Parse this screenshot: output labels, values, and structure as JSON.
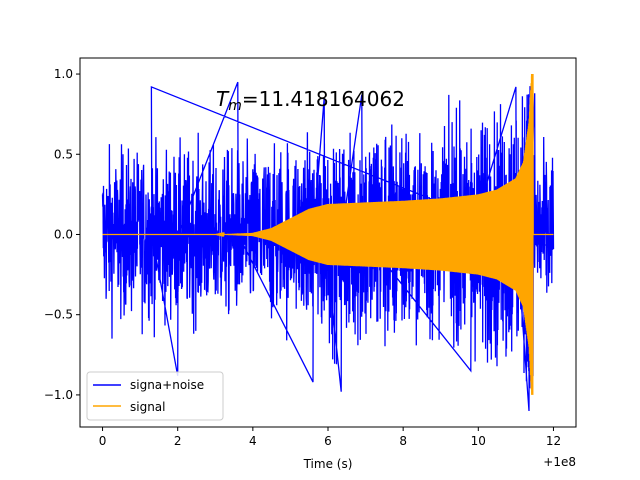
{
  "chart_data": {
    "type": "line",
    "title_prefix": "T",
    "title_subscript": "m",
    "title_value": "=11.418164062",
    "xlabel": "Time (s)",
    "ylabel": "",
    "x_offset_label": "+1e8",
    "xlim": [
      -0.6,
      12.6
    ],
    "ylim": [
      -1.2,
      1.1
    ],
    "x_ticks": [
      0,
      2,
      4,
      6,
      8,
      10,
      12
    ],
    "x_tick_labels": [
      "0",
      "2",
      "4",
      "6",
      "8",
      "10",
      "12"
    ],
    "y_ticks": [
      -1.0,
      -0.5,
      0.0,
      0.5,
      1.0
    ],
    "y_tick_labels": [
      "−1.0",
      "−0.5",
      "0.0",
      "0.5",
      "1.0"
    ],
    "grid": false,
    "legend_position": "lower-left",
    "series": [
      {
        "name": "signa+noise",
        "color": "#0000ff",
        "x_range": [
          0,
          12
        ],
        "noise_std": 0.25,
        "peaks": [
          {
            "x": 1.3,
            "y": 0.92
          },
          {
            "x": 2.0,
            "y": -0.88
          },
          {
            "x": 3.6,
            "y": 0.95
          },
          {
            "x": 5.6,
            "y": -0.92
          },
          {
            "x": 5.9,
            "y": 0.85
          },
          {
            "x": 6.35,
            "y": -0.98
          },
          {
            "x": 6.9,
            "y": 0.87
          },
          {
            "x": 9.8,
            "y": -0.85
          },
          {
            "x": 11.0,
            "y": 0.92
          },
          {
            "x": 11.35,
            "y": -1.1
          },
          {
            "x": 11.5,
            "y": 0.88
          }
        ]
      },
      {
        "name": "signal",
        "color": "#ffa500",
        "x_range": [
          0,
          12
        ],
        "envelope": [
          {
            "x": 0.0,
            "y": 0.0
          },
          {
            "x": 3.0,
            "y": 0.0
          },
          {
            "x": 4.0,
            "y": 0.01
          },
          {
            "x": 4.5,
            "y": 0.04
          },
          {
            "x": 5.0,
            "y": 0.1
          },
          {
            "x": 5.5,
            "y": 0.16
          },
          {
            "x": 6.0,
            "y": 0.19
          },
          {
            "x": 7.0,
            "y": 0.2
          },
          {
            "x": 8.0,
            "y": 0.21
          },
          {
            "x": 9.0,
            "y": 0.225
          },
          {
            "x": 10.0,
            "y": 0.25
          },
          {
            "x": 10.5,
            "y": 0.28
          },
          {
            "x": 11.0,
            "y": 0.35
          },
          {
            "x": 11.2,
            "y": 0.45
          },
          {
            "x": 11.35,
            "y": 0.7
          },
          {
            "x": 11.418,
            "y": 1.0
          }
        ],
        "tail_after": 11.46
      }
    ]
  }
}
